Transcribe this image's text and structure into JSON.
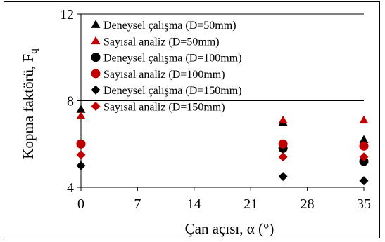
{
  "chart_data": {
    "type": "scatter",
    "xlabel": "Çan açısı, α (°)",
    "ylabel": "Kopma faktörü, F",
    "ylabel_sub": "q",
    "xlim": [
      0,
      35
    ],
    "ylim": [
      4,
      12
    ],
    "xticks": [
      "0",
      "7",
      "14",
      "21",
      "28",
      "35"
    ],
    "yticks": [
      "4",
      "8",
      "12"
    ],
    "grid": "horizontal",
    "legend_position": "top-left",
    "series": [
      {
        "name": "Deneysel çalışma (D=50mm)",
        "marker": "triangle",
        "color": "#000000",
        "points": [
          [
            0,
            7.6
          ],
          [
            25,
            7.0
          ],
          [
            35,
            6.2
          ]
        ]
      },
      {
        "name": "Sayısal analiz (D=50mm)",
        "marker": "triangle",
        "color": "#c00000",
        "points": [
          [
            0,
            7.3
          ],
          [
            25,
            7.1
          ],
          [
            35,
            7.1
          ]
        ]
      },
      {
        "name": "Deneysel çalışma (D=100mm)",
        "marker": "circle",
        "color": "#000000",
        "points": [
          [
            0,
            6.0
          ],
          [
            25,
            5.8
          ],
          [
            35,
            5.2
          ]
        ]
      },
      {
        "name": "Sayısal analiz (D=100mm)",
        "marker": "circle",
        "color": "#c00000",
        "points": [
          [
            0,
            6.0
          ],
          [
            25,
            6.0
          ],
          [
            35,
            5.9
          ]
        ]
      },
      {
        "name": "Deneysel çalışma (D=150mm)",
        "marker": "diamond",
        "color": "#000000",
        "points": [
          [
            0,
            5.0
          ],
          [
            25,
            4.5
          ],
          [
            35,
            4.3
          ]
        ]
      },
      {
        "name": "Sayısal analiz (D=150mm)",
        "marker": "diamond",
        "color": "#c00000",
        "points": [
          [
            0,
            5.5
          ],
          [
            25,
            5.4
          ],
          [
            35,
            5.4
          ]
        ]
      }
    ]
  }
}
